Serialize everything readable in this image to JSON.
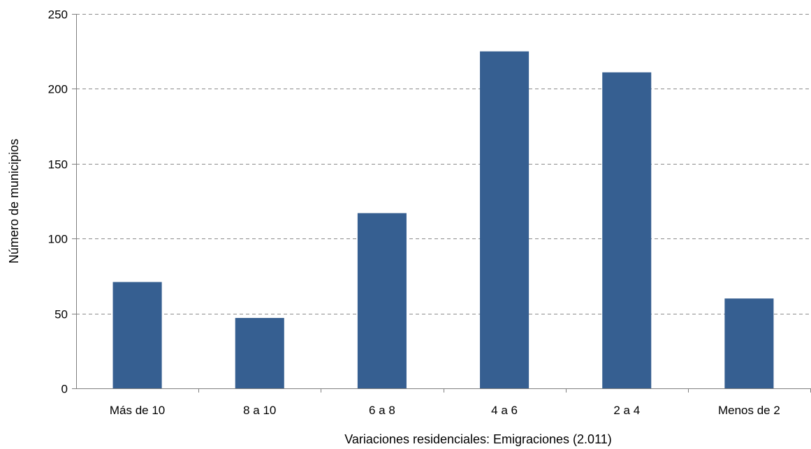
{
  "chart_data": {
    "type": "bar",
    "categories": [
      "Más de 10",
      "8 a 10",
      "6 a 8",
      "4 a 6",
      "2 a 4",
      "Menos de 2"
    ],
    "series": [
      {
        "values": [
          71,
          47,
          117,
          225,
          211,
          60
        ]
      }
    ],
    "xlabel": "Variaciones residenciales: Emigraciones (2.011)",
    "ylabel": "Número de municipios",
    "ylim": [
      0,
      250
    ],
    "yticks": [
      0,
      50,
      100,
      150,
      200,
      250
    ],
    "grid": "horizontal dashed",
    "legend": "none",
    "colors": {
      "bar": "#365f91",
      "grid": "#8c8c8c",
      "axis": "#7f7f7f"
    }
  }
}
